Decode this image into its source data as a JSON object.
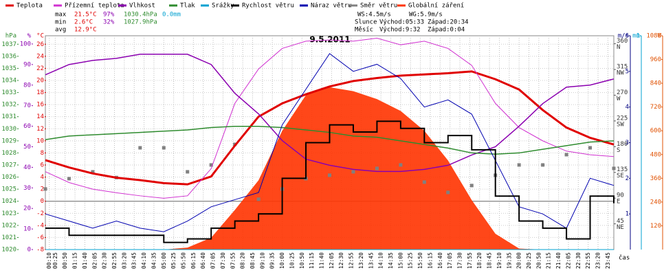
{
  "chart_data": {
    "type": "line",
    "title": "9.5.2011",
    "x_label": "čas",
    "xlim": [
      0,
      1440
    ],
    "xticks": [
      {
        "value": 10,
        "label": "00:10"
      },
      {
        "value": 25,
        "label": "00:25"
      },
      {
        "value": 50,
        "label": "00:50"
      },
      {
        "value": 75,
        "label": "01:15"
      },
      {
        "value": 100,
        "label": "01:40"
      },
      {
        "value": 125,
        "label": "02:05"
      },
      {
        "value": 150,
        "label": "02:30"
      },
      {
        "value": 175,
        "label": "02:55"
      },
      {
        "value": 200,
        "label": "03:20"
      },
      {
        "value": 225,
        "label": "03:45"
      },
      {
        "value": 250,
        "label": "04:10"
      },
      {
        "value": 275,
        "label": "04:35"
      },
      {
        "value": 300,
        "label": "05:00"
      },
      {
        "value": 325,
        "label": "05:25"
      },
      {
        "value": 350,
        "label": "05:50"
      },
      {
        "value": 375,
        "label": "06:15"
      },
      {
        "value": 400,
        "label": "06:40"
      },
      {
        "value": 425,
        "label": "07:05"
      },
      {
        "value": 450,
        "label": "07:30"
      },
      {
        "value": 475,
        "label": "07:55"
      },
      {
        "value": 500,
        "label": "08:20"
      },
      {
        "value": 525,
        "label": "08:45"
      },
      {
        "value": 550,
        "label": "09:10"
      },
      {
        "value": 575,
        "label": "09:35"
      },
      {
        "value": 600,
        "label": "10:00"
      },
      {
        "value": 625,
        "label": "10:25"
      },
      {
        "value": 650,
        "label": "10:50"
      },
      {
        "value": 675,
        "label": "11:15"
      },
      {
        "value": 700,
        "label": "11:40"
      },
      {
        "value": 725,
        "label": "12:05"
      },
      {
        "value": 750,
        "label": "12:30"
      },
      {
        "value": 775,
        "label": "12:55"
      },
      {
        "value": 800,
        "label": "13:20"
      },
      {
        "value": 825,
        "label": "13:45"
      },
      {
        "value": 850,
        "label": "14:10"
      },
      {
        "value": 875,
        "label": "14:35"
      },
      {
        "value": 900,
        "label": "15:00"
      },
      {
        "value": 925,
        "label": "15:25"
      },
      {
        "value": 950,
        "label": "15:50"
      },
      {
        "value": 975,
        "label": "16:15"
      },
      {
        "value": 1000,
        "label": "16:40"
      },
      {
        "value": 1025,
        "label": "17:05"
      },
      {
        "value": 1050,
        "label": "17:30"
      },
      {
        "value": 1075,
        "label": "17:55"
      },
      {
        "value": 1100,
        "label": "18:20"
      },
      {
        "value": 1125,
        "label": "18:45"
      },
      {
        "value": 1150,
        "label": "19:10"
      },
      {
        "value": 1175,
        "label": "19:35"
      },
      {
        "value": 1200,
        "label": "20:00"
      },
      {
        "value": 1225,
        "label": "20:25"
      },
      {
        "value": 1250,
        "label": "20:50"
      },
      {
        "value": 1275,
        "label": "21:15"
      },
      {
        "value": 1300,
        "label": "21:40"
      },
      {
        "value": 1325,
        "label": "22:05"
      },
      {
        "value": 1350,
        "label": "22:30"
      },
      {
        "value": 1375,
        "label": "22:55"
      },
      {
        "value": 1400,
        "label": "23:20"
      },
      {
        "value": 1425,
        "label": "23:45"
      }
    ],
    "grid": true,
    "axes": {
      "hpa": {
        "label": "hPa",
        "color": "#2e8b2e",
        "side": "left",
        "lim": [
          1020,
          1037.7
        ],
        "ticks": [
          1020,
          1021,
          1022,
          1023,
          1024,
          1025,
          1026,
          1027,
          1028,
          1029,
          1030,
          1031,
          1032,
          1033,
          1034,
          1035,
          1036,
          1037
        ]
      },
      "pct": {
        "label": "%",
        "color": "#8b00b0",
        "side": "left",
        "lim": [
          0,
          104
        ],
        "ticks": [
          0,
          10,
          20,
          30,
          40,
          50,
          60,
          70,
          80,
          90,
          100
        ]
      },
      "temp": {
        "label": "°C",
        "color": "#e00000",
        "side": "left",
        "lim": [
          -8,
          27.4
        ],
        "ticks": [
          -8,
          -6,
          -4,
          -2,
          0,
          2,
          4,
          6,
          8,
          10,
          12,
          14,
          16,
          18,
          20,
          22,
          24,
          26
        ]
      },
      "dir": {
        "label": "m/s",
        "color": "#333333",
        "side": "right",
        "lim": [
          0,
          374
        ],
        "ticks": [
          45,
          90,
          135,
          180,
          225,
          270,
          315,
          360
        ],
        "names": [
          "NE",
          "E",
          "SE",
          "S",
          "SW",
          "W",
          "NW",
          "N"
        ]
      },
      "ms": {
        "label": "m/s",
        "color": "#000080",
        "side": "right",
        "lim": [
          0,
          6
        ],
        "ticks": [
          1,
          2,
          3,
          4,
          5,
          6
        ]
      },
      "mm": {
        "label": "mm",
        "color": "#00a0d0",
        "side": "right",
        "lim": [
          0,
          1
        ],
        "ticks": [
          1
        ]
      },
      "w": {
        "label": "W",
        "color": "#e05000",
        "side": "right",
        "lim": [
          0,
          1080
        ],
        "ticks": [
          120,
          240,
          360,
          480,
          600,
          720,
          840,
          960,
          1080
        ]
      }
    },
    "x": [
      0,
      60,
      120,
      180,
      240,
      300,
      360,
      420,
      480,
      540,
      600,
      660,
      720,
      780,
      840,
      900,
      960,
      1020,
      1080,
      1140,
      1200,
      1260,
      1320,
      1380,
      1440
    ],
    "series": [
      {
        "name": "Teplota",
        "color": "#e00000",
        "axis": "temp",
        "kind": "line",
        "width": 3,
        "values": [
          6.8,
          5.6,
          4.6,
          3.9,
          3.5,
          3.0,
          2.8,
          4.1,
          9.2,
          14.0,
          16.2,
          17.7,
          19.0,
          19.9,
          20.4,
          20.8,
          21.0,
          21.2,
          21.5,
          20.2,
          18.5,
          15.1,
          12.2,
          10.5,
          9.4
        ]
      },
      {
        "name": "Přízemní teplota",
        "color": "#d030d0",
        "axis": "temp",
        "kind": "line",
        "width": 1,
        "values": [
          4.9,
          3.1,
          2.0,
          1.4,
          0.9,
          0.5,
          0.9,
          5.4,
          16.2,
          21.9,
          25.3,
          26.5,
          26.7,
          26.5,
          27.0,
          25.9,
          26.5,
          25.3,
          22.5,
          16.2,
          12.2,
          10.0,
          8.3,
          7.7,
          7.4
        ]
      },
      {
        "name": "Vlhkost",
        "color": "#8b00b0",
        "axis": "pct",
        "kind": "line",
        "width": 1.5,
        "values": [
          85,
          90,
          92,
          93,
          95,
          95,
          95,
          90,
          76,
          66,
          53,
          44,
          41,
          39,
          38,
          38,
          39,
          41,
          46,
          50,
          60,
          71,
          79,
          80,
          83
        ]
      },
      {
        "name": "Tlak",
        "color": "#2e8b2e",
        "axis": "hpa",
        "kind": "line",
        "width": 1.5,
        "values": [
          1029.1,
          1029.4,
          1029.5,
          1029.6,
          1029.7,
          1029.8,
          1029.9,
          1030.1,
          1030.2,
          1030.2,
          1030.1,
          1029.9,
          1029.7,
          1029.4,
          1029.3,
          1029.0,
          1028.7,
          1028.4,
          1028.0,
          1027.9,
          1028.0,
          1028.3,
          1028.6,
          1028.9,
          1029.0
        ]
      },
      {
        "name": "Srážky",
        "color": "#00a0d0",
        "axis": "mm",
        "kind": "line",
        "width": 1,
        "values": [
          0,
          0,
          0,
          0,
          0,
          0,
          0,
          0,
          0,
          0,
          0,
          0,
          0,
          0,
          0,
          0,
          0,
          0,
          0,
          0,
          0,
          0,
          0,
          0,
          0
        ]
      },
      {
        "name": "Rychlost větru",
        "color": "#000000",
        "axis": "ms",
        "kind": "step",
        "width": 2,
        "values": [
          0.6,
          0.4,
          0.4,
          0.4,
          0.4,
          0.2,
          0.3,
          0.6,
          0.8,
          1.0,
          2.0,
          3.0,
          3.5,
          3.3,
          3.6,
          3.4,
          3.0,
          3.2,
          2.8,
          1.5,
          0.8,
          0.6,
          0.3,
          1.5,
          1.3
        ]
      },
      {
        "name": "Náraz větru",
        "color": "#0000b0",
        "axis": "ms",
        "kind": "line",
        "width": 1,
        "values": [
          1.0,
          0.8,
          0.6,
          0.8,
          0.6,
          0.5,
          0.8,
          1.2,
          1.4,
          1.6,
          3.5,
          4.5,
          5.5,
          5.0,
          5.2,
          4.8,
          4.0,
          4.2,
          3.8,
          2.5,
          1.2,
          1.0,
          0.6,
          2.0,
          1.8
        ]
      },
      {
        "name": "Směr větru",
        "color": "#808080",
        "axis": "dir",
        "kind": "scatter",
        "width": 1,
        "values": [
          106,
          124,
          136,
          126,
          178,
          178,
          136,
          148,
          184,
          88,
          106,
          124,
          130,
          136,
          142,
          148,
          118,
          100,
          112,
          130,
          148,
          148,
          166,
          178,
          142
        ]
      },
      {
        "name": "Globální záření",
        "color": "#ff3300",
        "axis": "w",
        "kind": "area",
        "width": 1,
        "values": [
          0,
          0,
          0,
          0,
          0,
          0,
          10,
          60,
          200,
          350,
          600,
          780,
          820,
          800,
          760,
          700,
          600,
          450,
          250,
          80,
          5,
          0,
          0,
          0,
          0
        ]
      }
    ],
    "stats": [
      [
        "max",
        "21.5°C",
        "97%",
        "1030.4hPa",
        "0.0mm"
      ],
      [
        "min",
        "2.6°C",
        "32%",
        "1027.9hPa"
      ],
      [
        "avg",
        "12.9°C"
      ]
    ],
    "info": {
      "ws": "WS:4.5m/s",
      "wg": "WG:5.9m/s",
      "sun": "Slunce",
      "sun_rise": "Východ:05:33",
      "sun_set": "Západ:20:34",
      "moon": "Měsíc",
      "moon_rise": "Východ:9:32",
      "moon_set": "Západ:0:04"
    }
  }
}
